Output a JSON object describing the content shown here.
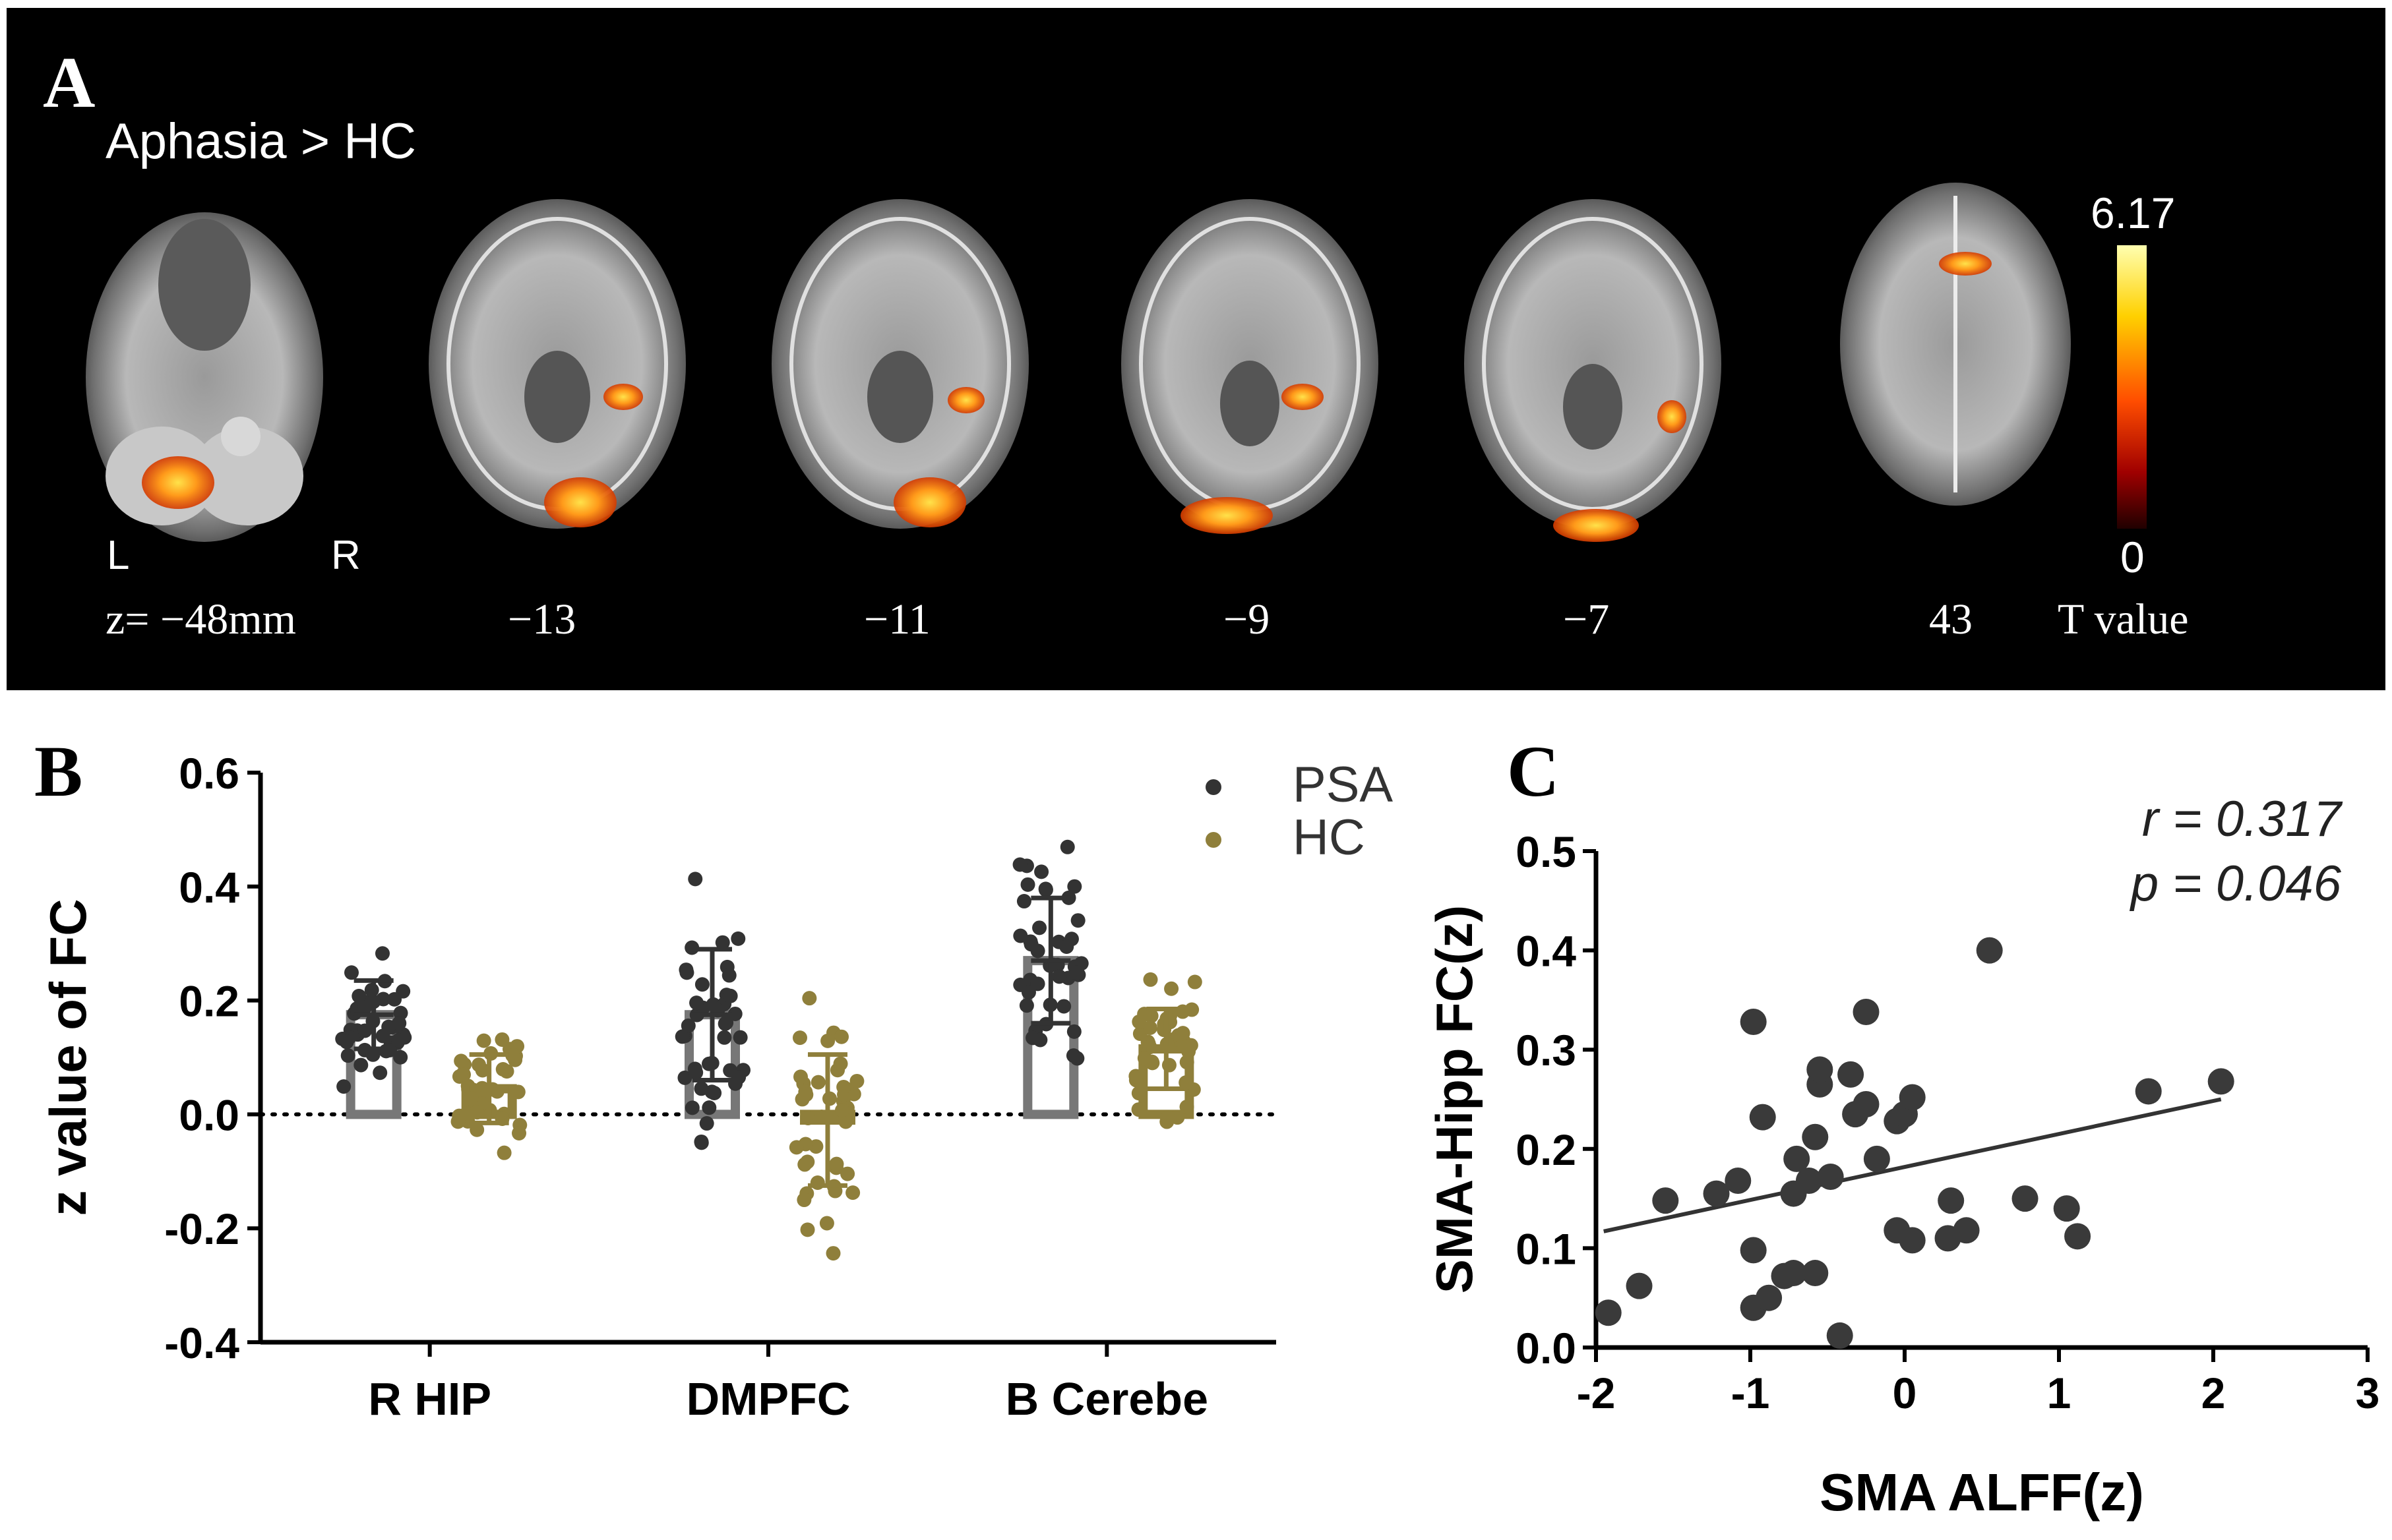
{
  "panelA": {
    "letter": "A",
    "contrast": "Aphasia > HC",
    "orientation": {
      "left": "L",
      "right": "R"
    },
    "slice_labels": [
      "z= −48mm",
      "−13",
      "−11",
      "−9",
      "−7",
      "43"
    ],
    "colorbar": {
      "max": "6.17",
      "min": "0",
      "title": "T value"
    }
  },
  "panelB": {
    "letter": "B",
    "legend": [
      {
        "name": "PSA",
        "color": "#333333"
      },
      {
        "name": "HC",
        "color": "#8f7f3b"
      }
    ]
  },
  "panelC": {
    "letter": "C",
    "stats": {
      "r": "r = 0.317",
      "p": "p = 0.046"
    }
  },
  "chart_data": [
    {
      "type": "bar",
      "title": "",
      "xlabel": "",
      "ylabel": "z value of FC",
      "ylim": [
        -0.4,
        0.6
      ],
      "yticks": [
        "-0.4",
        "-0.2",
        "0.0",
        "0.2",
        "0.4",
        "0.6"
      ],
      "categories": [
        "R HIP",
        "DMPFC",
        "B Cerebe"
      ],
      "series": [
        {
          "name": "PSA",
          "values": [
            0.175,
            0.175,
            0.27
          ],
          "sd": [
            0.06,
            0.115,
            0.11
          ],
          "color": "#333333"
        },
        {
          "name": "HC",
          "values": [
            0.045,
            -0.01,
            0.115
          ],
          "sd": [
            0.06,
            0.115,
            0.07
          ],
          "color": "#8f7f3b"
        }
      ],
      "reference_line": 0
    },
    {
      "type": "scatter",
      "xlabel": "SMA ALFF(z)",
      "ylabel": "SMA-Hipp FC(z)",
      "xlim": [
        -2,
        3
      ],
      "ylim": [
        0,
        0.5
      ],
      "xticks": [
        "-2",
        "-1",
        "0",
        "1",
        "2",
        "3"
      ],
      "yticks": [
        "0.0",
        "0.1",
        "0.2",
        "0.3",
        "0.4",
        "0.5"
      ],
      "points": [
        [
          -1.92,
          0.035
        ],
        [
          -1.72,
          0.062
        ],
        [
          -1.55,
          0.148
        ],
        [
          -1.22,
          0.155
        ],
        [
          -1.08,
          0.168
        ],
        [
          -0.98,
          0.328
        ],
        [
          -0.92,
          0.232
        ],
        [
          -0.98,
          0.098
        ],
        [
          -0.98,
          0.04
        ],
        [
          -0.88,
          0.05
        ],
        [
          -0.78,
          0.072
        ],
        [
          -0.72,
          0.075
        ],
        [
          -0.72,
          0.155
        ],
        [
          -0.7,
          0.19
        ],
        [
          -0.62,
          0.168
        ],
        [
          -0.58,
          0.212
        ],
        [
          -0.55,
          0.265
        ],
        [
          -0.55,
          0.28
        ],
        [
          -0.58,
          0.075
        ],
        [
          -0.48,
          0.172
        ],
        [
          -0.42,
          0.012
        ],
        [
          -0.35,
          0.275
        ],
        [
          -0.32,
          0.235
        ],
        [
          -0.25,
          0.245
        ],
        [
          -0.25,
          0.338
        ],
        [
          -0.18,
          0.19
        ],
        [
          -0.05,
          0.118
        ],
        [
          -0.05,
          0.228
        ],
        [
          0.0,
          0.235
        ],
        [
          0.05,
          0.252
        ],
        [
          0.05,
          0.108
        ],
        [
          0.28,
          0.11
        ],
        [
          0.3,
          0.148
        ],
        [
          0.4,
          0.118
        ],
        [
          0.55,
          0.4
        ],
        [
          0.78,
          0.15
        ],
        [
          1.05,
          0.14
        ],
        [
          1.12,
          0.112
        ],
        [
          1.58,
          0.258
        ],
        [
          2.05,
          0.268
        ]
      ],
      "fit_line": {
        "x": [
          -1.95,
          2.05
        ],
        "y": [
          0.117,
          0.25
        ]
      }
    }
  ]
}
